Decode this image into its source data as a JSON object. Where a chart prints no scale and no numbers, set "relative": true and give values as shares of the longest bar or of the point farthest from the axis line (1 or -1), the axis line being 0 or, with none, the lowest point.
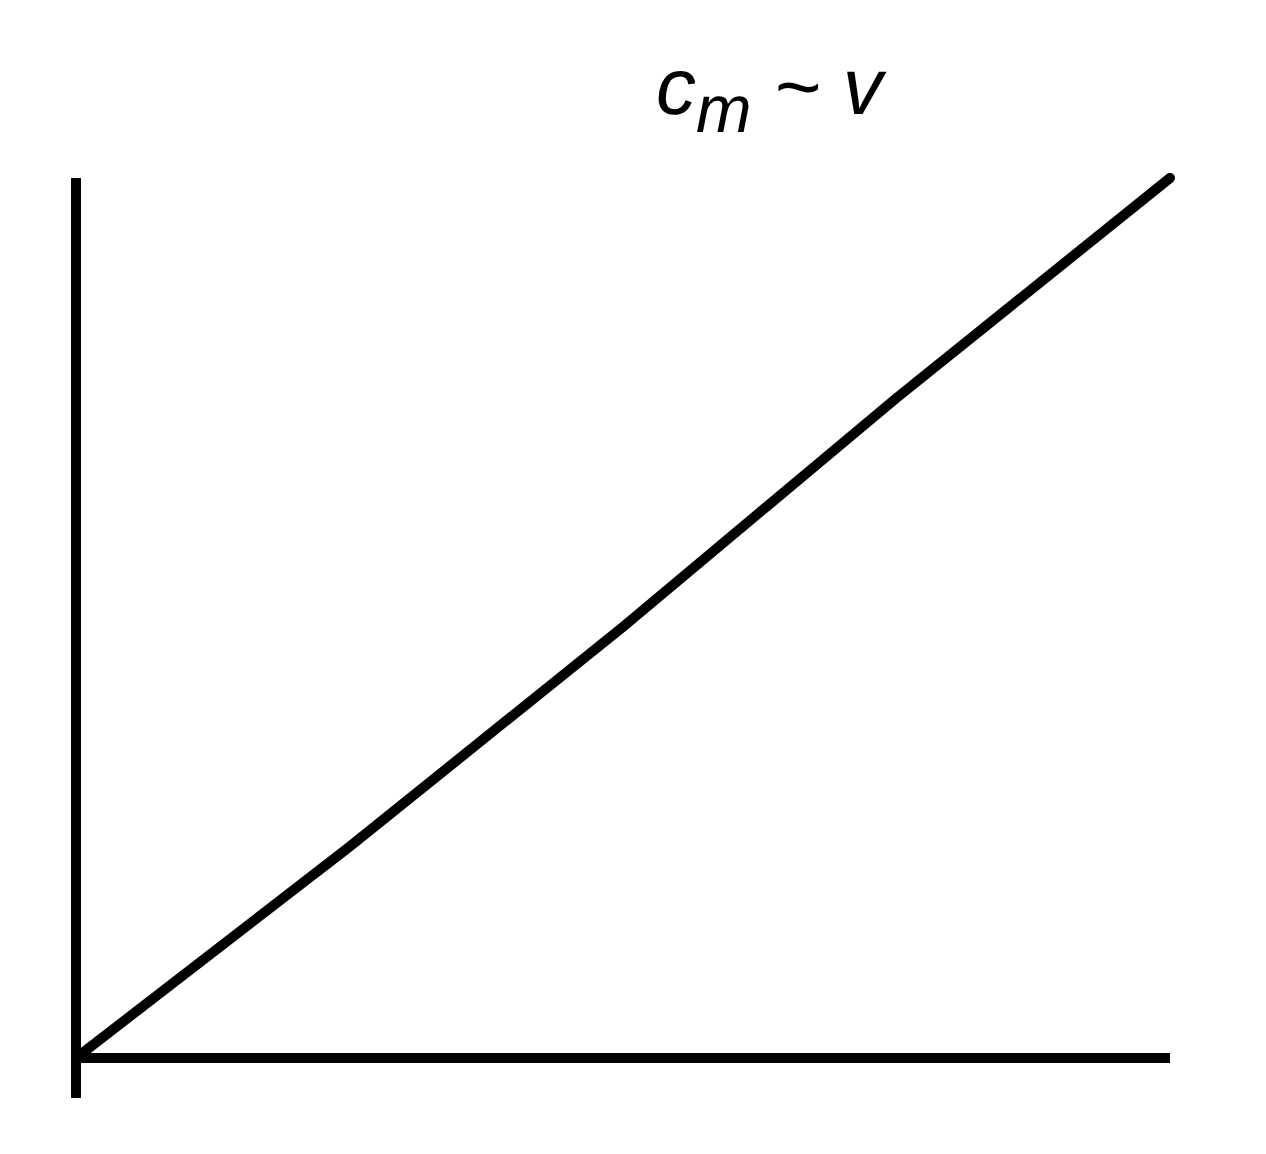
{
  "chart_data": {
    "type": "line",
    "title": "c$_{m}$ ~ v",
    "relative": true,
    "categories": [
      null,
      null,
      null,
      null,
      null
    ],
    "series": [
      {
        "color": "#000000",
        "values": [
          0,
          0.24,
          0.49,
          0.75,
          1
        ]
      }
    ],
    "marker": "none",
    "line_style": "solid",
    "grid": false,
    "legend": false
  }
}
